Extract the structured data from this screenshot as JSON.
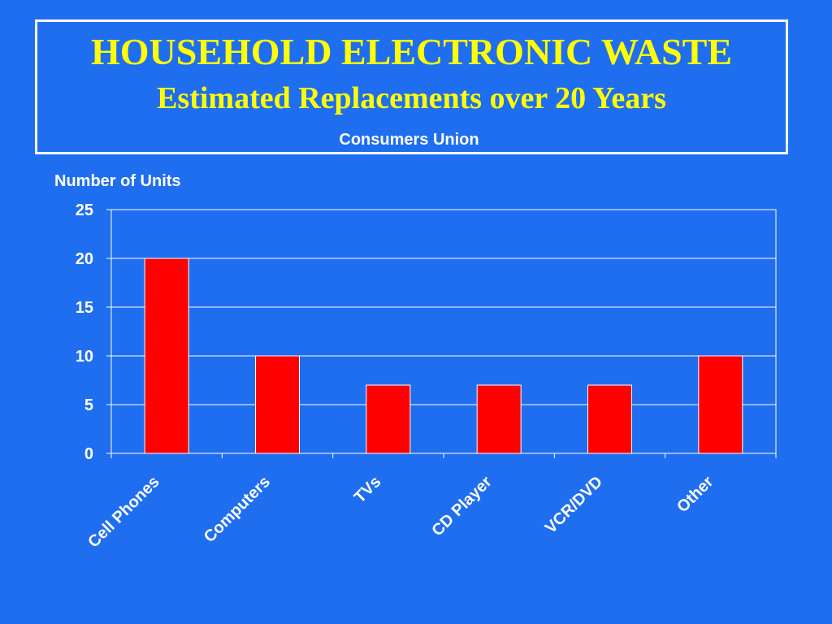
{
  "header": {
    "title": "HOUSEHOLD ELECTRONIC WASTE",
    "subtitle": "Estimated Replacements over 20 Years",
    "source": "Consumers Union"
  },
  "colors": {
    "background": "#1f6ef0",
    "title_text": "#ffff00",
    "bar_fill": "#ff0000",
    "bar_stroke": "#ffffff",
    "axis": "#ffffff"
  },
  "chart_data": {
    "type": "bar",
    "title": "HOUSEHOLD ELECTRONIC WASTE",
    "subtitle": "Estimated Replacements over 20 Years",
    "xlabel": "",
    "ylabel": "Number of Units",
    "categories": [
      "Cell Phones",
      "Computers",
      "TVs",
      "CD Player",
      "VCR/DVD",
      "Other"
    ],
    "values": [
      20,
      10,
      7,
      7,
      7,
      10
    ],
    "ylim": [
      0,
      25
    ],
    "yticks": [
      0,
      5,
      10,
      15,
      20,
      25
    ],
    "grid": true,
    "legend": "none"
  }
}
